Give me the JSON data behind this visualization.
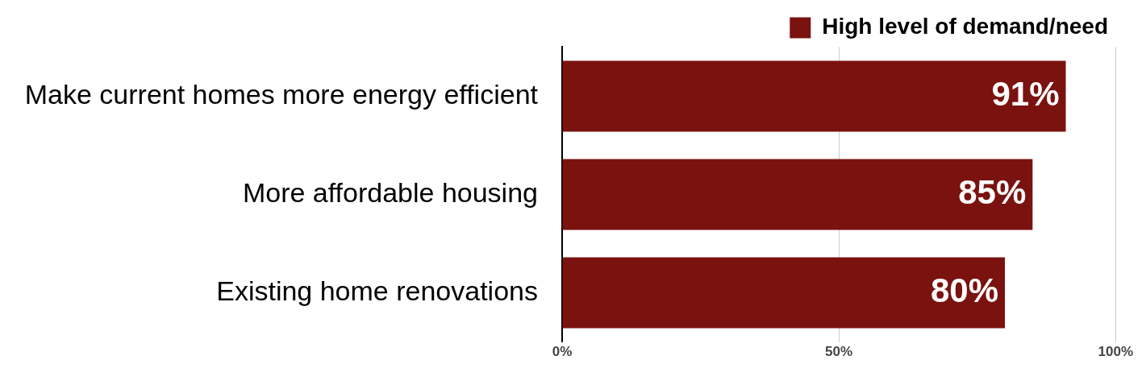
{
  "chart_data": {
    "type": "bar",
    "orientation": "horizontal",
    "categories": [
      "Make current homes more energy efficient",
      "More affordable housing",
      "Existing home renovations"
    ],
    "series": [
      {
        "name": "High level of demand/need",
        "color": "#7a1210",
        "values": [
          91,
          85,
          80
        ],
        "value_labels": [
          "91%",
          "85%",
          "80%"
        ]
      }
    ],
    "xlim": [
      0,
      100
    ],
    "xticks": [
      {
        "value": 0,
        "label": "0%"
      },
      {
        "value": 50,
        "label": "50%"
      },
      {
        "value": 100,
        "label": "100%"
      }
    ],
    "grid": "x",
    "legend": "top right"
  }
}
